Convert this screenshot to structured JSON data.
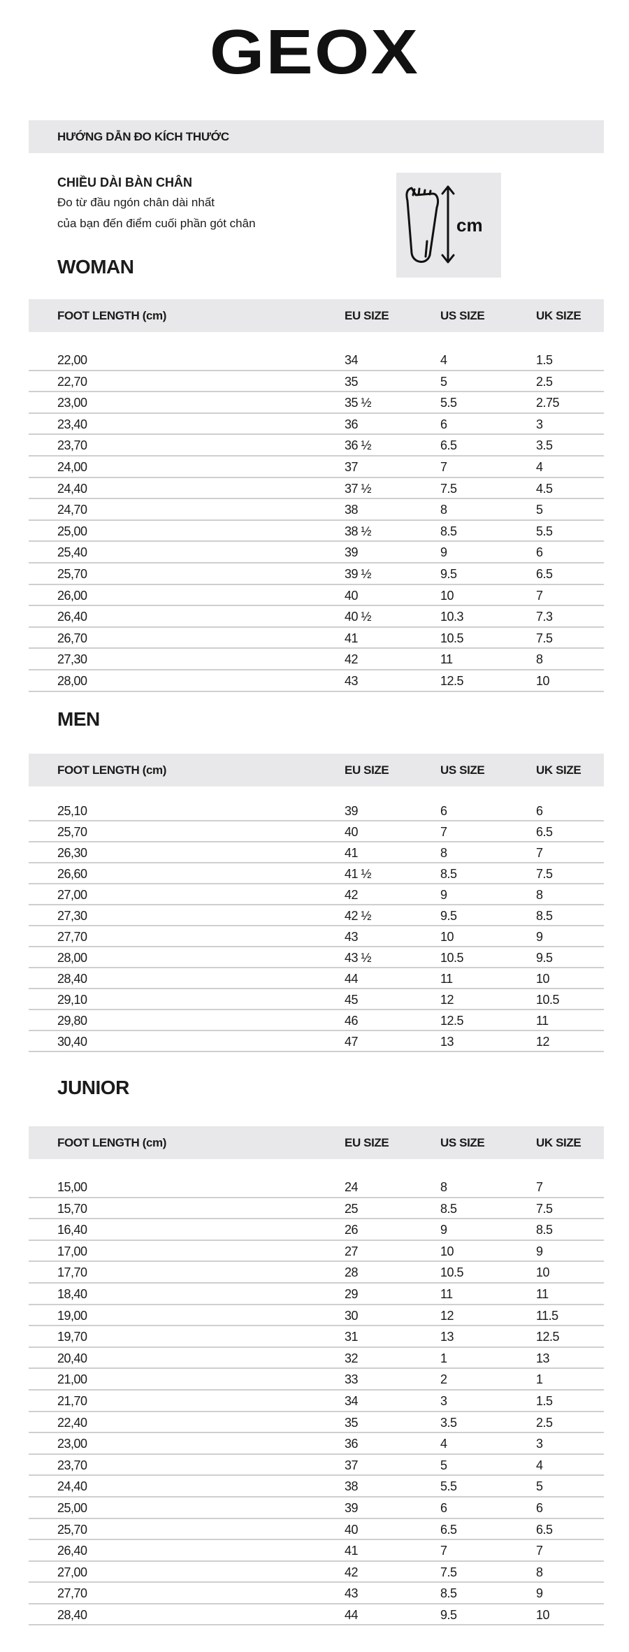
{
  "brand": {
    "logo_text": "GEOX"
  },
  "guide": {
    "title": "HƯỚNG DẪN ĐO KÍCH THƯỚC",
    "foot_length_title": "CHIỀU DÀI BÀN CHÂN",
    "line1": "Đo từ đầu ngón chân dài nhất",
    "line2": "của bạn đến điểm cuối phần gót chân",
    "icon": "foot-measure-icon",
    "icon_label": "cm"
  },
  "columns": [
    "FOOT LENGTH (cm)",
    "EU SIZE",
    "US SIZE",
    "UK SIZE"
  ],
  "colors": {
    "bar_bg": "#e8e8ea",
    "divider": "#cfcfcf",
    "text": "#1b1b1b"
  },
  "sections": [
    {
      "title": "WOMAN",
      "rows": [
        [
          "22,00",
          "34",
          "4",
          "1.5"
        ],
        [
          "22,70",
          "35",
          "5",
          "2.5"
        ],
        [
          "23,00",
          "35 ½",
          "5.5",
          "2.75"
        ],
        [
          "23,40",
          "36",
          "6",
          "3"
        ],
        [
          "23,70",
          "36 ½",
          "6.5",
          "3.5"
        ],
        [
          "24,00",
          "37",
          "7",
          "4"
        ],
        [
          "24,40",
          "37 ½",
          "7.5",
          "4.5"
        ],
        [
          "24,70",
          "38",
          "8",
          "5"
        ],
        [
          "25,00",
          "38 ½",
          "8.5",
          "5.5"
        ],
        [
          "25,40",
          "39",
          "9",
          "6"
        ],
        [
          "25,70",
          "39 ½",
          "9.5",
          "6.5"
        ],
        [
          "26,00",
          "40",
          "10",
          "7"
        ],
        [
          "26,40",
          "40 ½",
          "10.3",
          "7.3"
        ],
        [
          "26,70",
          "41",
          "10.5",
          "7.5"
        ],
        [
          "27,30",
          "42",
          "11",
          "8"
        ],
        [
          "28,00",
          "43",
          "12.5",
          "10"
        ]
      ]
    },
    {
      "title": "MEN",
      "rows": [
        [
          "25,10",
          "39",
          "6",
          "6"
        ],
        [
          "25,70",
          "40",
          "7",
          "6.5"
        ],
        [
          "26,30",
          "41",
          "8",
          "7"
        ],
        [
          "26,60",
          "41 ½",
          "8.5",
          "7.5"
        ],
        [
          "27,00",
          "42",
          "9",
          "8"
        ],
        [
          "27,30",
          "42 ½",
          "9.5",
          "8.5"
        ],
        [
          "27,70",
          "43",
          "10",
          "9"
        ],
        [
          "28,00",
          "43 ½",
          "10.5",
          "9.5"
        ],
        [
          "28,40",
          "44",
          "11",
          "10"
        ],
        [
          "29,10",
          "45",
          "12",
          "10.5"
        ],
        [
          "29,80",
          "46",
          "12.5",
          "11"
        ],
        [
          "30,40",
          "47",
          "13",
          "12"
        ]
      ]
    },
    {
      "title": "JUNIOR",
      "rows": [
        [
          "15,00",
          "24",
          "8",
          "7"
        ],
        [
          "15,70",
          "25",
          "8.5",
          "7.5"
        ],
        [
          "16,40",
          "26",
          "9",
          "8.5"
        ],
        [
          "17,00",
          "27",
          "10",
          "9"
        ],
        [
          "17,70",
          "28",
          "10.5",
          "10"
        ],
        [
          "18,40",
          "29",
          "11",
          "11"
        ],
        [
          "19,00",
          "30",
          "12",
          "11.5"
        ],
        [
          "19,70",
          "31",
          "13",
          "12.5"
        ],
        [
          "20,40",
          "32",
          "1",
          "13"
        ],
        [
          "21,00",
          "33",
          "2",
          "1"
        ],
        [
          "21,70",
          "34",
          "3",
          "1.5"
        ],
        [
          "22,40",
          "35",
          "3.5",
          "2.5"
        ],
        [
          "23,00",
          "36",
          "4",
          "3"
        ],
        [
          "23,70",
          "37",
          "5",
          "4"
        ],
        [
          "24,40",
          "38",
          "5.5",
          "5"
        ],
        [
          "25,00",
          "39",
          "6",
          "6"
        ],
        [
          "25,70",
          "40",
          "6.5",
          "6.5"
        ],
        [
          "26,40",
          "41",
          "7",
          "7"
        ],
        [
          "27,00",
          "42",
          "7.5",
          "8"
        ],
        [
          "27,70",
          "43",
          "8.5",
          "9"
        ],
        [
          "28,40",
          "44",
          "9.5",
          "10"
        ]
      ]
    }
  ]
}
